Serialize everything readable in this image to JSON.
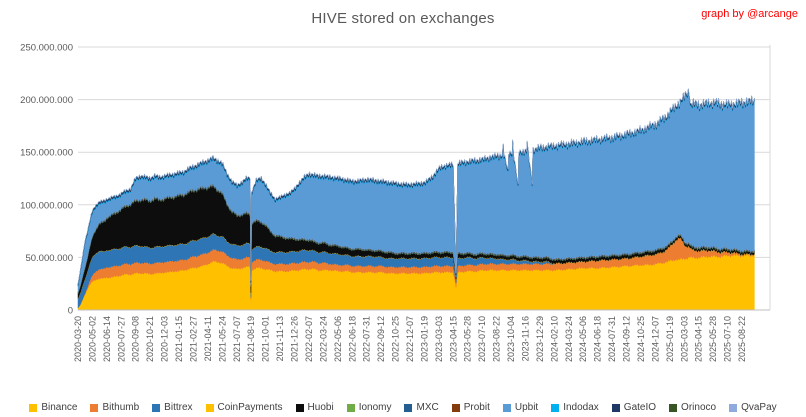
{
  "title": "HIVE stored on exchanges",
  "credit": "graph by @arcange",
  "colors": {
    "background": "#ffffff",
    "title_text": "#595959",
    "credit_text": "#ff0000",
    "axis_text": "#595959",
    "gridline": "#d9d9d9",
    "axis_line": "#bfbfbf"
  },
  "chart_data": {
    "type": "area",
    "stacked": true,
    "title": "HIVE stored on exchanges",
    "xlabel": "",
    "ylabel": "",
    "values_unit": "HIVE (millions)",
    "ylim": [
      0,
      250000000
    ],
    "grid": "horizontal",
    "legend_position": "bottom",
    "y_tick_labels": [
      "0",
      "50.000.000",
      "100.000.000",
      "150.000.000",
      "200.000.000",
      "250.000.000"
    ],
    "y_tick_values_millions": [
      0,
      50,
      100,
      150,
      200,
      250
    ],
    "x_tick_interval_days": 43,
    "x_tick_labels": [
      "2020-03-20",
      "2020-05-02",
      "2020-06-14",
      "2020-07-27",
      "2020-09-08",
      "2020-10-21",
      "2020-12-03",
      "2021-01-15",
      "2021-02-27",
      "2021-04-11",
      "2021-05-24",
      "2021-07-07",
      "2021-08-19",
      "2021-10-01",
      "2021-11-13",
      "2021-12-26",
      "2022-02-07",
      "2022-03-24",
      "2022-05-06",
      "2022-06-18",
      "2022-07-31",
      "2022-09-12",
      "2022-10-25",
      "2022-12-07",
      "2023-01-19",
      "2023-03-03",
      "2023-04-15",
      "2023-05-28",
      "2023-07-10",
      "2023-08-22",
      "2023-10-04",
      "2023-11-16",
      "2023-12-29",
      "2024-02-10",
      "2024-03-24",
      "2024-05-06",
      "2024-06-18",
      "2024-07-31",
      "2024-09-12",
      "2024-10-25",
      "2024-12-07",
      "2025-01-19",
      "2025-03-03",
      "2025-04-15",
      "2025-05-28",
      "2025-07-10",
      "2025-08-22"
    ],
    "x_start_date": "2020-03-20",
    "x_days": [
      0,
      7,
      14,
      21,
      28,
      35,
      43,
      53,
      63,
      77,
      86,
      100,
      114,
      129,
      143,
      157,
      172,
      186,
      200,
      215,
      229,
      243,
      258,
      272,
      287,
      301,
      315,
      329,
      344,
      358,
      372,
      387,
      401,
      415,
      430,
      444,
      458,
      474,
      488,
      502,
      513,
      515,
      517,
      531,
      545,
      559,
      573,
      587,
      603,
      617,
      631,
      646,
      660,
      674,
      689,
      703,
      718,
      734,
      751,
      777,
      803,
      820,
      847,
      863,
      883,
      906,
      925,
      949,
      970,
      992,
      1017,
      1035,
      1057,
      1078,
      1095,
      1118,
      1126,
      1131,
      1164,
      1187,
      1207,
      1229,
      1250,
      1264,
      1267,
      1269,
      1281,
      1283,
      1293,
      1295,
      1297,
      1311,
      1313,
      1336,
      1338,
      1340,
      1353,
      1355,
      1379,
      1396,
      1422,
      1465,
      1508,
      1551,
      1594,
      1637,
      1680,
      1701,
      1723,
      1741,
      1757,
      1766,
      1779,
      1792,
      1803,
      1809,
      1821,
      1824,
      1838,
      1852,
      1868,
      1895,
      1913,
      1938,
      1960,
      1981,
      1991,
      2015
    ],
    "series": [
      {
        "name": "Binance",
        "color": "#FFC000",
        "values": [
          2,
          5,
          10,
          15,
          20,
          24,
          27,
          29,
          30,
          30,
          31,
          31,
          32,
          33,
          34,
          34,
          35,
          35,
          35,
          34,
          35,
          35,
          36,
          36,
          37,
          37,
          38,
          39,
          40,
          41,
          42,
          44,
          46,
          46,
          45,
          42,
          40,
          39,
          40,
          41,
          41,
          10,
          38,
          40,
          40,
          39,
          38,
          37,
          37,
          37,
          37,
          38,
          38,
          39,
          39,
          39,
          38,
          38,
          38,
          37,
          37,
          36,
          36,
          36,
          36,
          36,
          35,
          35,
          35,
          35,
          35,
          35,
          36,
          36,
          36,
          36,
          22,
          36,
          37,
          37,
          38,
          38,
          38,
          38,
          38,
          38,
          38,
          38,
          38,
          38,
          38,
          38,
          38,
          38,
          38,
          38,
          38,
          38,
          38,
          38,
          38,
          39,
          40,
          40,
          41,
          42,
          43,
          43,
          44,
          45,
          46,
          47,
          48,
          48,
          49,
          49,
          50,
          50,
          50,
          50,
          51,
          51,
          51,
          52,
          52,
          52,
          52,
          52
        ]
      },
      {
        "name": "Bithumb",
        "color": "#ED7D31",
        "values": [
          0,
          0,
          0.5,
          1,
          2,
          4,
          6,
          8,
          9,
          9,
          10,
          10,
          10,
          10,
          10,
          10,
          10,
          10,
          10,
          10,
          10,
          10,
          10,
          10,
          10,
          10,
          10,
          10,
          11,
          11,
          11,
          11,
          11,
          11,
          11,
          10,
          10,
          9,
          9,
          9,
          9,
          2,
          8,
          8,
          8,
          8,
          7,
          7,
          7,
          7,
          7,
          7,
          7,
          7,
          7,
          7,
          7,
          7,
          6,
          6,
          6,
          6,
          6,
          6,
          6,
          6,
          6,
          6,
          6,
          6,
          6,
          6,
          6,
          6,
          6,
          6,
          4,
          6,
          6,
          6,
          6,
          6,
          6,
          6,
          6,
          6,
          6,
          6,
          6,
          6,
          6,
          6,
          6,
          6,
          6,
          6,
          6,
          6,
          6,
          6,
          6,
          6,
          6,
          7,
          7,
          7,
          8,
          9,
          9,
          10,
          12,
          14,
          18,
          20,
          16,
          12,
          10,
          8,
          7,
          6,
          6,
          5,
          4,
          3,
          2,
          1,
          1,
          1
        ]
      },
      {
        "name": "Bittrex",
        "color": "#2E75B6",
        "values": [
          9,
          11,
          13,
          14,
          15,
          16,
          17,
          17,
          17,
          16,
          16,
          16,
          16,
          16,
          16,
          16,
          16,
          16,
          15,
          15,
          15,
          15,
          15,
          15,
          15,
          15,
          15,
          15,
          15,
          15,
          15,
          15,
          15,
          14,
          14,
          13,
          13,
          13,
          13,
          13,
          13,
          4,
          12,
          12,
          12,
          12,
          11,
          11,
          11,
          11,
          11,
          11,
          11,
          11,
          11,
          10,
          10,
          10,
          10,
          10,
          9,
          9,
          9,
          9,
          9,
          8,
          8,
          8,
          8,
          8,
          8,
          8,
          8,
          8,
          8,
          8,
          3,
          7,
          7,
          6,
          6,
          5,
          5,
          4,
          4,
          4,
          4,
          4,
          4,
          4,
          4,
          3,
          3,
          3,
          3,
          3,
          2,
          2,
          2,
          2,
          0,
          0,
          0,
          0,
          0,
          0,
          0,
          0,
          0,
          0,
          0,
          0,
          0,
          0,
          0,
          0,
          0,
          0,
          0,
          0,
          0,
          0,
          0,
          0,
          0,
          0,
          0,
          0
        ]
      },
      {
        "name": "CoinPayments",
        "color": "#FFC000",
        "constant": 0.3
      },
      {
        "name": "Huobi",
        "color": "#0D0D0D",
        "values": [
          4,
          6,
          8,
          10,
          12,
          15,
          19,
          22,
          25,
          28,
          30,
          32,
          34,
          36,
          38,
          40,
          42,
          43,
          44,
          44,
          45,
          44,
          44,
          45,
          45,
          46,
          46,
          47,
          47,
          47,
          47,
          46,
          45,
          43,
          40,
          35,
          30,
          28,
          28,
          28,
          27,
          6,
          24,
          24,
          23,
          21,
          18,
          15,
          14,
          13,
          12,
          11,
          10,
          9,
          9,
          8,
          8,
          8,
          7,
          7,
          6,
          6,
          6,
          5,
          5,
          5,
          5,
          4,
          4,
          4,
          4,
          4,
          4,
          4,
          4,
          4,
          2,
          4,
          3,
          3,
          3,
          3,
          3,
          3,
          3,
          3,
          3,
          3,
          3,
          3,
          3,
          3,
          3,
          3,
          3,
          3,
          3,
          3,
          3,
          3,
          3,
          3,
          3,
          3,
          3,
          3,
          3,
          3,
          3,
          3,
          2,
          2,
          2,
          2,
          2,
          2,
          2,
          2,
          2,
          2,
          2,
          2,
          2,
          2,
          2,
          2,
          2,
          2
        ]
      },
      {
        "name": "Ionomy",
        "color": "#70AD47",
        "constant": 0.3
      },
      {
        "name": "MXC",
        "color": "#255E91",
        "constant": 0.5
      },
      {
        "name": "Probit",
        "color": "#843C0C",
        "constant": 0.4
      },
      {
        "name": "Upbit",
        "color": "#5B9BD5",
        "values": [
          5.8,
          11.8,
          16.3,
          21.8,
          21.8,
          21.8,
          21.8,
          19.8,
          17.8,
          16.8,
          14.8,
          13.8,
          12.8,
          11.8,
          11.8,
          11.8,
          18.8,
          19.8,
          18.8,
          18.8,
          18.8,
          18.8,
          18.8,
          18.8,
          18.8,
          18.8,
          18.8,
          19.8,
          19.8,
          20.8,
          21.8,
          22.8,
          23.8,
          24.8,
          25.8,
          25.8,
          25.8,
          25.8,
          27.8,
          30.8,
          31.8,
          1.8,
          25.8,
          35.8,
          38.8,
          35.8,
          33.8,
          31.8,
          34.8,
          37.8,
          40.8,
          44.8,
          51.8,
          56.8,
          59.8,
          60.8,
          60.8,
          60.8,
          61.8,
          61.8,
          61.8,
          61.8,
          62.8,
          64.8,
          63.8,
          63.8,
          63.8,
          63.8,
          62.8,
          62.8,
          63.8,
          64.8,
          69.8,
          77.8,
          79.8,
          80.8,
          0,
          82.8,
          84.8,
          86.8,
          86.8,
          89.8,
          90.8,
          92.8,
          102.8,
          92.8,
          76.8,
          94.8,
          94.8,
          104.8,
          94.8,
          63.8,
          96.8,
          97.8,
          107.8,
          97.8,
          68.8,
          99.8,
          101.8,
          102.8,
          105.8,
          106.8,
          107.8,
          108.8,
          109.8,
          111.8,
          113.8,
          115.8,
          117.8,
          119.8,
          121.8,
          122.8,
          121.8,
          123.8,
          130.8,
          137.8,
          142.8,
          131.8,
          133.8,
          133.8,
          133.8,
          135.8,
          135.8,
          134.8,
          136.8,
          138.8,
          139.8,
          139.8
        ]
      },
      {
        "name": "Indodax",
        "color": "#00B0F0",
        "constant": 0.8
      },
      {
        "name": "GateIO",
        "color": "#1F3864",
        "constant": 1.5
      },
      {
        "name": "Orinoco",
        "color": "#375623",
        "constant": 0.2
      },
      {
        "name": "QvaPay",
        "color": "#8FAADC",
        "constant": 0.2
      }
    ]
  }
}
